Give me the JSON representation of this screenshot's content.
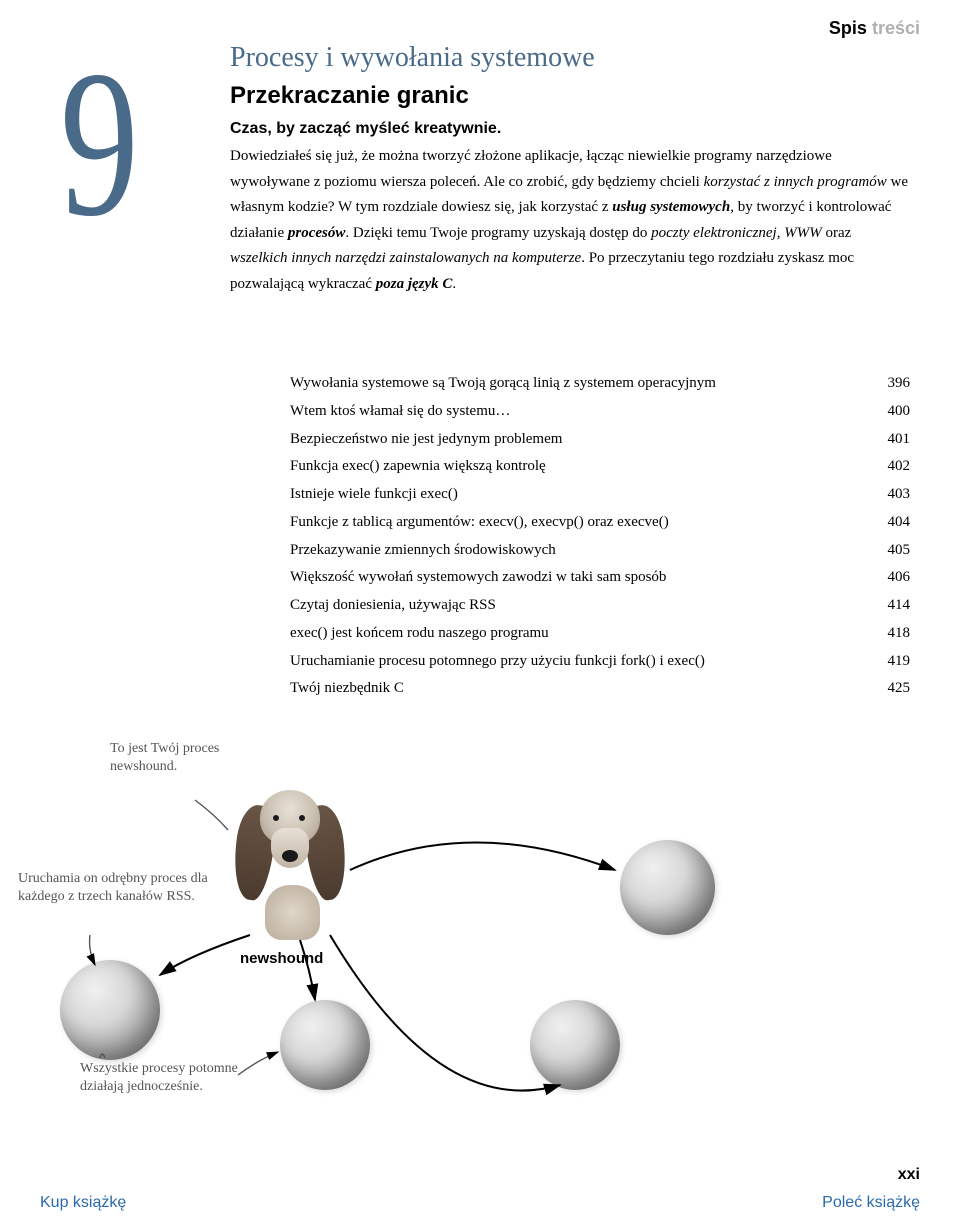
{
  "header": {
    "label": "Spis",
    "label_faded": "treści"
  },
  "chapter": {
    "number": "9",
    "title": "Procesy i wywołania systemowe",
    "subtitle": "Przekraczanie granic",
    "lead": "Czas, by zacząć myśleć kreatywnie.",
    "body_html": "Dowiedziałeś się już, że można tworzyć złożone aplikacje, łącząc niewielkie programy narzędziowe wywoływane z poziomu wiersza poleceń. Ale co zrobić, gdy będziemy chcieli <em>korzystać z innych programów</em> we własnym kodzie? W tym rozdziale dowiesz się, jak korzystać z <strong>usług systemowych</strong>, by tworzyć i kontrolować działanie <strong>procesów</strong>. Dzięki temu Twoje programy uzyskają dostęp do <em>poczty elektronicznej, WWW</em> oraz <em>wszelkich innych narzędzi zainstalowanych na komputerze</em>. Po przeczytaniu tego rozdziału zyskasz moc pozwalającą wykraczać <strong>poza język C</strong>.",
    "number_color": "#4a6a8a",
    "title_color": "#4a6a8a"
  },
  "toc": [
    {
      "label": "Wywołania systemowe są Twoją gorącą linią z systemem operacyjnym",
      "page": "396"
    },
    {
      "label": "Wtem ktoś włamał się do systemu…",
      "page": "400"
    },
    {
      "label": "Bezpieczeństwo nie jest jedynym problemem",
      "page": "401"
    },
    {
      "label": "Funkcja exec() zapewnia większą kontrolę",
      "page": "402"
    },
    {
      "label": "Istnieje wiele funkcji exec()",
      "page": "403"
    },
    {
      "label": "Funkcje z tablicą argumentów: execv(), execvp() oraz execve()",
      "page": "404"
    },
    {
      "label": "Przekazywanie zmiennych środowiskowych",
      "page": "405"
    },
    {
      "label": "Większość wywołań systemowych zawodzi w taki sam sposób",
      "page": "406"
    },
    {
      "label": "Czytaj doniesienia, używając RSS",
      "page": "414"
    },
    {
      "label": "exec() jest końcem rodu naszego programu",
      "page": "418"
    },
    {
      "label": "Uruchamianie procesu potomnego przy użyciu funkcji fork() i exec()",
      "page": "419"
    },
    {
      "label": "Twój niezbędnik C",
      "page": "425"
    }
  ],
  "annotations": {
    "a1": "To jest Twój proces newshound.",
    "a2": "Uruchamia on odrębny proces dla każdego z trzech kanałów RSS.",
    "a3": "Wszystkie procesy potomne działają jednocześnie."
  },
  "diagram": {
    "center_label": "newshound",
    "sphere_gradient": [
      "#f0f0f0",
      "#d8d8d8",
      "#a8a8a8",
      "#707070"
    ],
    "arrow_color": "#000000"
  },
  "footer": {
    "left": "Kup książkę",
    "right": "Poleć książkę",
    "page": "xxi",
    "link_color": "#2a6aaa"
  }
}
